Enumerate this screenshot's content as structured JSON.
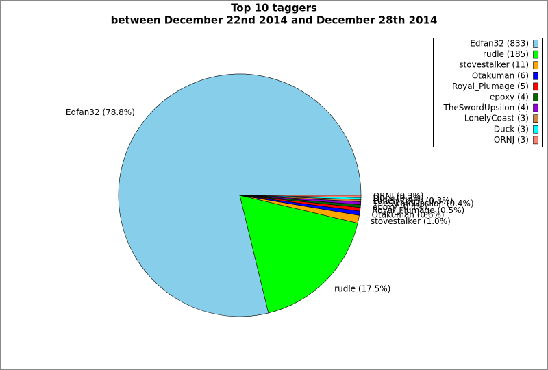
{
  "chart_data": {
    "type": "pie",
    "title": "Top 10 taggers",
    "subtitle": "between December 22nd 2014 and December 28th 2014",
    "categories": [
      "Edfan32 (833)",
      "rudle (185)",
      "stovestalker (11)",
      "Otakuman (6)",
      "Royal_Plumage (5)",
      "epoxy (4)",
      "TheSwordUpsilon (4)",
      "LonelyCoast (3)",
      "Duck (3)",
      "ORNJ (3)"
    ],
    "values": [
      833,
      185,
      11,
      6,
      5,
      4,
      4,
      3,
      3,
      3
    ],
    "value_labels": [
      "Edfan32 (78.8%)",
      "rudle (17.5%)",
      "stovestalker (1.0%)",
      "Otakuman (0.6%)",
      "Royal_Plumage (0.5%)",
      "epoxy (0.4%)",
      "TheSwordUpsilon (0.4%)",
      "LonelyCoast (0.3%)",
      "Duck (0.3%)",
      "ORNJ (0.3%)"
    ],
    "colors": [
      "#87ceeb",
      "#00ff00",
      "#ffa500",
      "#0000ff",
      "#ff0000",
      "#006400",
      "#9400d3",
      "#cd853f",
      "#00ffff",
      "#fa8072"
    ],
    "legend": "upper right"
  }
}
